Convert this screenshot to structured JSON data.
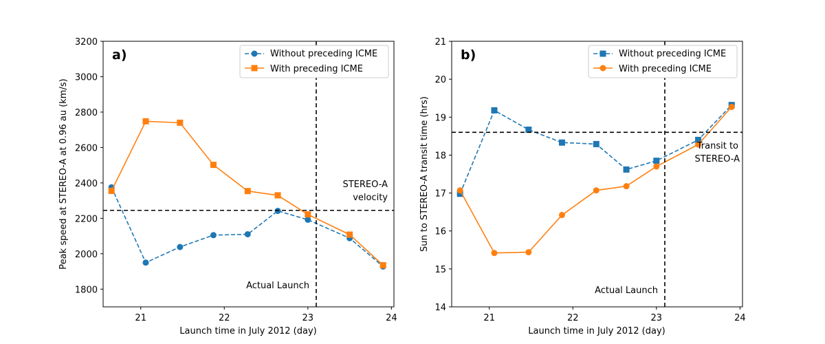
{
  "colors": {
    "blue": "#1f77b4",
    "orange": "#ff7f0e",
    "ref": "#000000"
  },
  "chart_data": [
    {
      "type": "line",
      "panel_label": "a)",
      "xlabel": "Launch time in July 2012 (day)",
      "ylabel": "Peak speed at STEREO-A at 0.96 au (km/s)",
      "xlim": [
        20.55,
        24.03
      ],
      "ylim": [
        1700,
        3200
      ],
      "xticks": [
        21,
        22,
        23,
        24
      ],
      "xtick_labels": [
        "21",
        "22",
        "23",
        "24"
      ],
      "yticks": [
        1800,
        2000,
        2200,
        2400,
        2600,
        2800,
        3000,
        3200
      ],
      "ytick_labels": [
        "1800",
        "2000",
        "2200",
        "2400",
        "2600",
        "2800",
        "3000",
        "3200"
      ],
      "x": [
        20.65,
        21.06,
        21.47,
        21.87,
        22.28,
        22.64,
        23.0,
        23.5,
        23.9
      ],
      "series": [
        {
          "name": "Without preceding ICME",
          "color": "#1f77b4",
          "linestyle": "dashed",
          "marker": "circle",
          "values": [
            2375,
            1950,
            2038,
            2105,
            2110,
            2242,
            2192,
            2088,
            1928
          ]
        },
        {
          "name": "With preceding ICME",
          "color": "#ff7f0e",
          "linestyle": "solid",
          "marker": "square",
          "values": [
            2355,
            2748,
            2740,
            2502,
            2354,
            2330,
            2222,
            2108,
            1935
          ]
        }
      ],
      "hline": 2245,
      "vline": 23.1,
      "hline_label": [
        "STEREO-A",
        "velocity"
      ],
      "vline_label": "Actual Launch",
      "legend_position": "top-right"
    },
    {
      "type": "line",
      "panel_label": "b)",
      "xlabel": "Launch time in July 2012 (day)",
      "ylabel": "Sun to STEREO-A transit time (hrs)",
      "xlim": [
        20.55,
        24.03
      ],
      "ylim": [
        14,
        21
      ],
      "xticks": [
        21,
        22,
        23,
        24
      ],
      "xtick_labels": [
        "21",
        "22",
        "23",
        "24"
      ],
      "yticks": [
        14,
        15,
        16,
        17,
        18,
        19,
        20,
        21
      ],
      "ytick_labels": [
        "14",
        "15",
        "16",
        "17",
        "18",
        "19",
        "20",
        "21"
      ],
      "x": [
        20.65,
        21.06,
        21.47,
        21.87,
        22.28,
        22.64,
        23.0,
        23.5,
        23.9
      ],
      "series": [
        {
          "name": "Without preceding ICME",
          "color": "#1f77b4",
          "linestyle": "dashed",
          "marker": "square",
          "values": [
            16.98,
            19.18,
            18.67,
            18.33,
            18.29,
            17.62,
            17.85,
            18.4,
            19.32
          ]
        },
        {
          "name": "With preceding ICME",
          "color": "#ff7f0e",
          "linestyle": "solid",
          "marker": "circle",
          "values": [
            17.07,
            15.42,
            15.44,
            16.42,
            17.07,
            17.18,
            17.7,
            18.28,
            19.27
          ]
        }
      ],
      "hline": 18.6,
      "vline": 23.1,
      "hline_label": [
        "Transit to",
        "STEREO-A"
      ],
      "vline_label": "Actual Launch",
      "legend_position": "top-right"
    }
  ]
}
